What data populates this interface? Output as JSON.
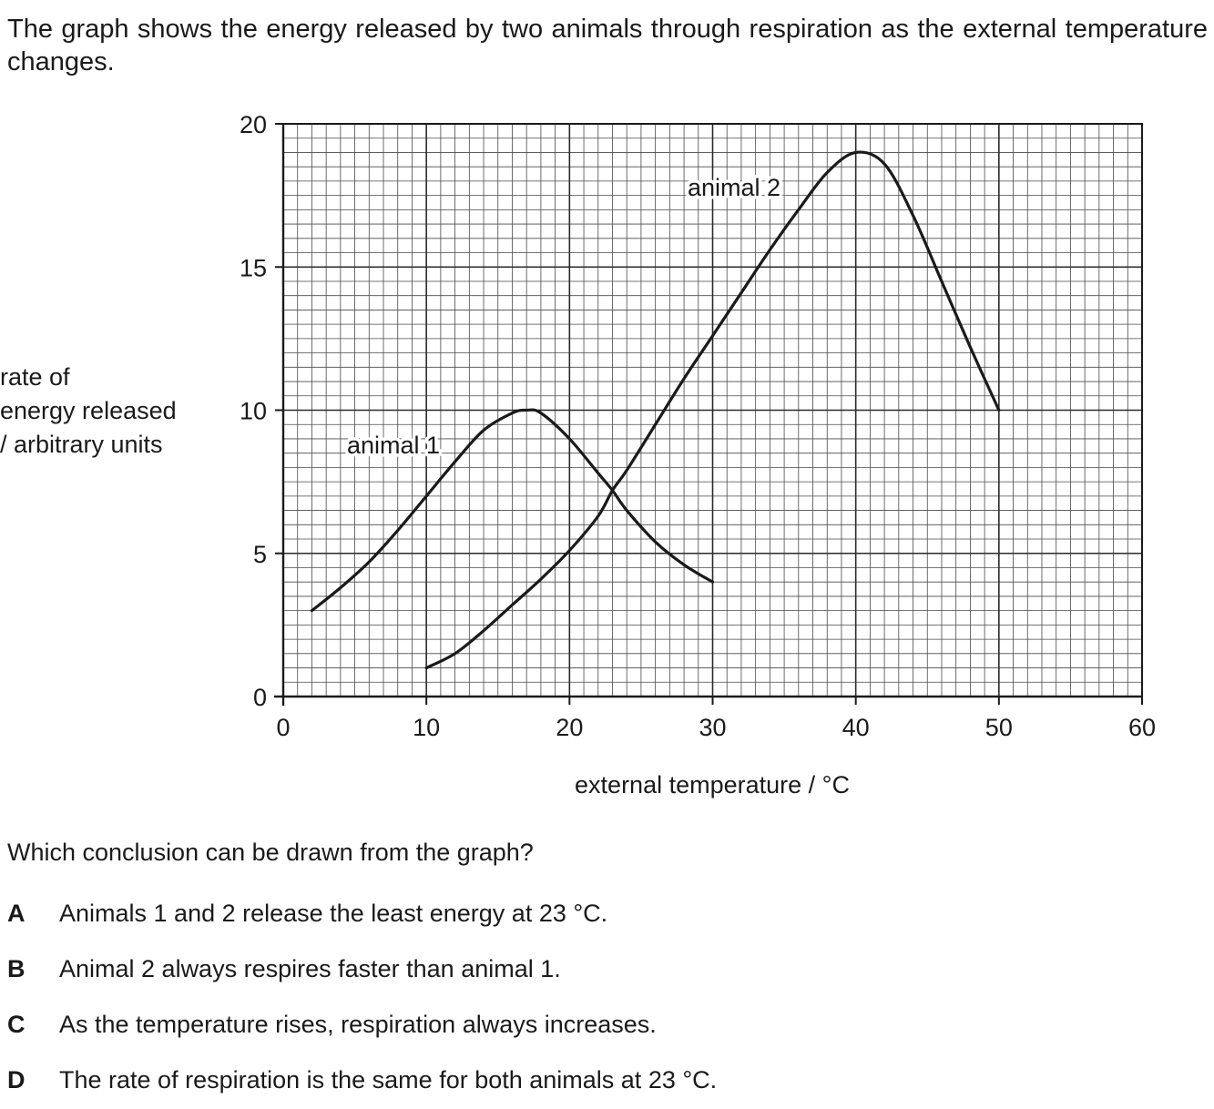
{
  "intro_text": "The graph shows the energy released by two animals through respiration as the external temperature changes.",
  "chart_data": {
    "type": "line",
    "xlabel": "external temperature / °C",
    "ylabel_lines": [
      "rate of",
      "energy released",
      "/ arbitrary units"
    ],
    "xlim": [
      0,
      60
    ],
    "ylim": [
      0,
      20
    ],
    "x_ticks": [
      0,
      10,
      20,
      30,
      40,
      50,
      60
    ],
    "y_ticks": [
      0,
      5,
      10,
      15,
      20
    ],
    "grid": true,
    "series": [
      {
        "name": "animal 1",
        "x": [
          2,
          4,
          6,
          8,
          10,
          12,
          14,
          16,
          17,
          18,
          20,
          22,
          23,
          24,
          26,
          28,
          30
        ],
        "y": [
          3,
          3.8,
          4.7,
          5.8,
          7,
          8.2,
          9.3,
          9.9,
          10,
          9.9,
          9,
          7.8,
          7.2,
          6.5,
          5.4,
          4.6,
          4
        ]
      },
      {
        "name": "animal 2",
        "x": [
          10,
          12,
          14,
          16,
          18,
          20,
          22,
          23,
          24,
          26,
          28,
          30,
          32,
          34,
          36,
          38,
          40,
          42,
          44,
          46,
          48,
          50
        ],
        "y": [
          1,
          1.5,
          2.3,
          3.2,
          4.1,
          5.1,
          6.3,
          7.2,
          7.9,
          9.5,
          11.1,
          12.6,
          14.1,
          15.6,
          17.0,
          18.3,
          19,
          18.6,
          16.8,
          14.5,
          12.2,
          10
        ]
      }
    ]
  },
  "question": "Which conclusion can be drawn from the graph?",
  "options": [
    {
      "letter": "A",
      "text": "Animals 1 and 2 release the least energy at 23 °C."
    },
    {
      "letter": "B",
      "text": "Animal 2 always respires faster than animal 1."
    },
    {
      "letter": "C",
      "text": "As the temperature rises, respiration always increases."
    },
    {
      "letter": "D",
      "text": "The rate of respiration is the same for both animals at 23 °C."
    }
  ]
}
